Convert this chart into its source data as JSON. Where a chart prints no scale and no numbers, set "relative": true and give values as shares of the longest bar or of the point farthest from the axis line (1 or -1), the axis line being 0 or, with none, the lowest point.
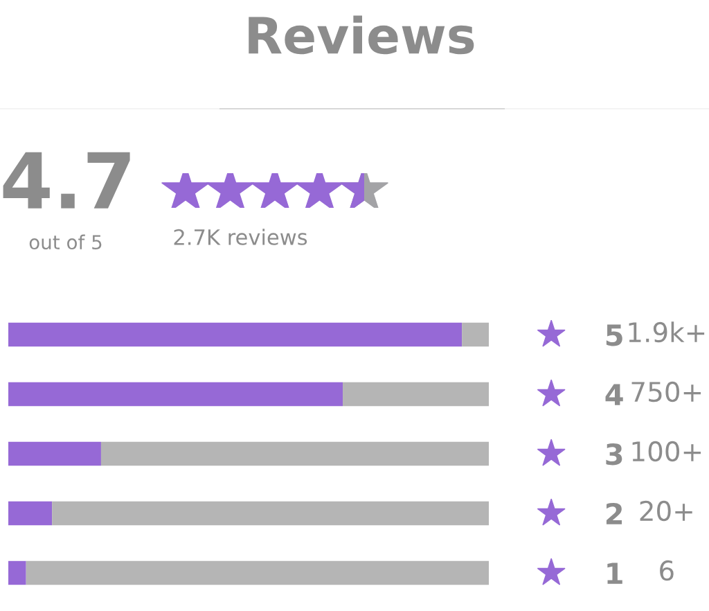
{
  "chart_data": {
    "type": "bar",
    "orientation": "horizontal",
    "stacked": true,
    "relative": true,
    "title": "Reviews",
    "categories": [
      "5",
      "4",
      "3",
      "2",
      "1"
    ],
    "series": [
      {
        "color": "#9669d6",
        "values": [
          0.944,
          0.696,
          0.193,
          0.091,
          0.037
        ]
      },
      {
        "color": "#b5b5b5",
        "values": [
          0.056,
          0.304,
          0.807,
          0.909,
          0.963
        ]
      }
    ],
    "annotations": [
      "4.7",
      "out of 5",
      "2.7K reviews",
      "1.9k+",
      "750+",
      "100+",
      "20+",
      "6"
    ],
    "grid": false,
    "tick_labels": "y"
  }
}
